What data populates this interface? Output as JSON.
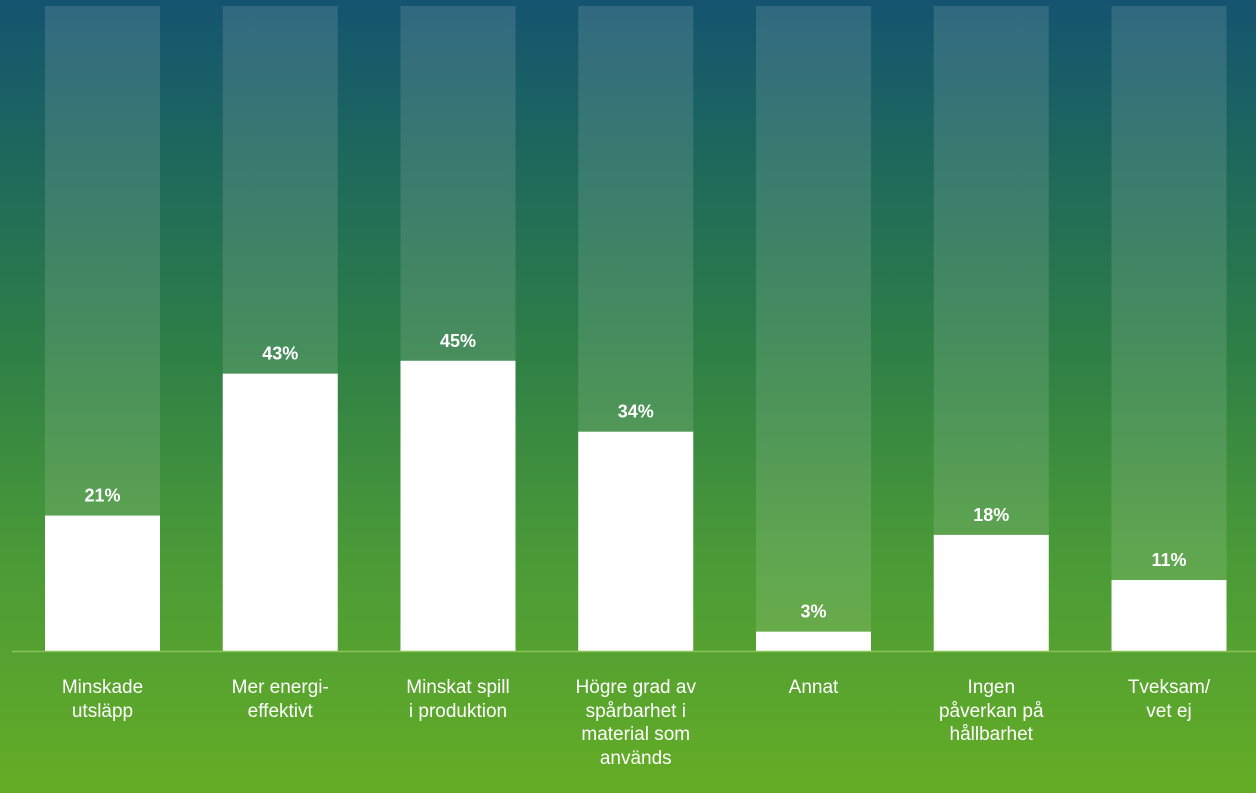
{
  "chart_data": {
    "type": "bar",
    "categories": [
      "Minskade\nutsläpp",
      "Mer energi-\neffektivt",
      "Minskat spill\ni produktion",
      "Högre grad av\nspårbarhet i\nmaterial som\nanvänds",
      "Annat",
      "Ingen\npåverkan på\nhållbarhet",
      "Tveksam/\nvet ej"
    ],
    "values": [
      21,
      43,
      45,
      34,
      3,
      18,
      11
    ],
    "value_labels": [
      "21%",
      "43%",
      "45%",
      "34%",
      "3%",
      "18%",
      "11%"
    ],
    "ylim": [
      0,
      100
    ],
    "title": "",
    "xlabel": "",
    "ylabel": "",
    "grid": false,
    "colors": {
      "bar": "#ffffff",
      "bar_background": "rgba(255,255,255,0.12)",
      "value_label": "#ffffff",
      "baseline": "#8cc25a"
    }
  }
}
